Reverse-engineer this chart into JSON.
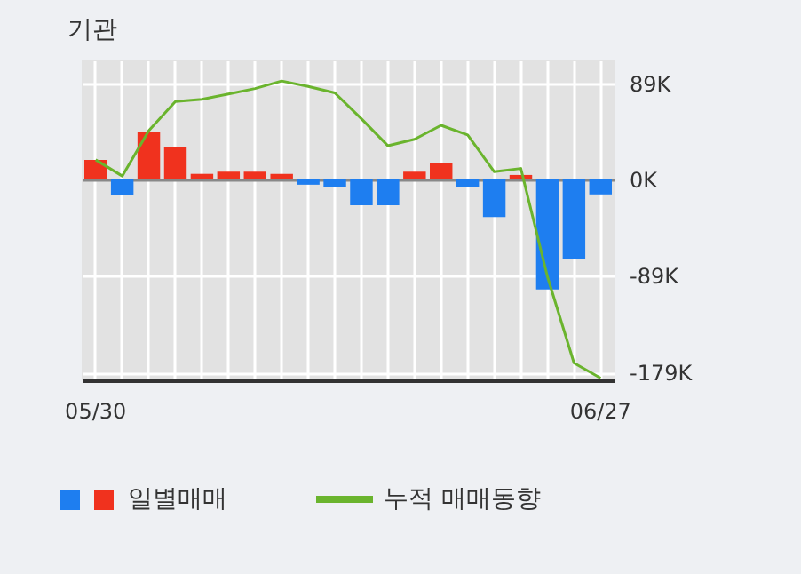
{
  "chart_data": {
    "type": "bar",
    "title": "기관",
    "categories": [
      "05/30",
      null,
      null,
      null,
      null,
      null,
      null,
      null,
      null,
      null,
      null,
      null,
      null,
      null,
      null,
      null,
      null,
      null,
      null,
      "06/27"
    ],
    "series": [
      {
        "name": "일별매매",
        "colors": [
          "#f0321e",
          "#1e7ef0",
          "#f0321e",
          "#f0321e",
          "#f0321e",
          "#f0321e",
          "#f0321e",
          "#f0321e",
          "#1e7ef0",
          "#1e7ef0",
          "#1e7ef0",
          "#1e7ef0",
          "#f0321e",
          "#f0321e",
          "#1e7ef0",
          "#1e7ef0",
          "#f0321e",
          "#1e7ef0",
          "#1e7ef0",
          "#1e7ef0"
        ],
        "values": [
          18,
          -15,
          44,
          30,
          5,
          7,
          7,
          5,
          -5,
          -7,
          -24,
          -24,
          7,
          15,
          -7,
          -35,
          4,
          -102,
          -74,
          -14
        ]
      },
      {
        "name": "누적 매매동향",
        "type": "line",
        "color": "#6ab42d",
        "values": [
          18,
          3,
          45,
          72,
          74,
          79,
          84,
          91,
          86,
          80,
          56,
          31,
          37,
          50,
          41,
          7,
          10,
          -90,
          -170,
          -184
        ]
      }
    ],
    "ylim": [
      -186,
      110
    ],
    "yticks": [
      {
        "value": 89,
        "label": "89K"
      },
      {
        "value": 0,
        "label": "0K"
      },
      {
        "value": -89,
        "label": "-89K"
      },
      {
        "value": -179,
        "label": "-179K"
      }
    ],
    "grid": true,
    "legend": "bottom"
  }
}
